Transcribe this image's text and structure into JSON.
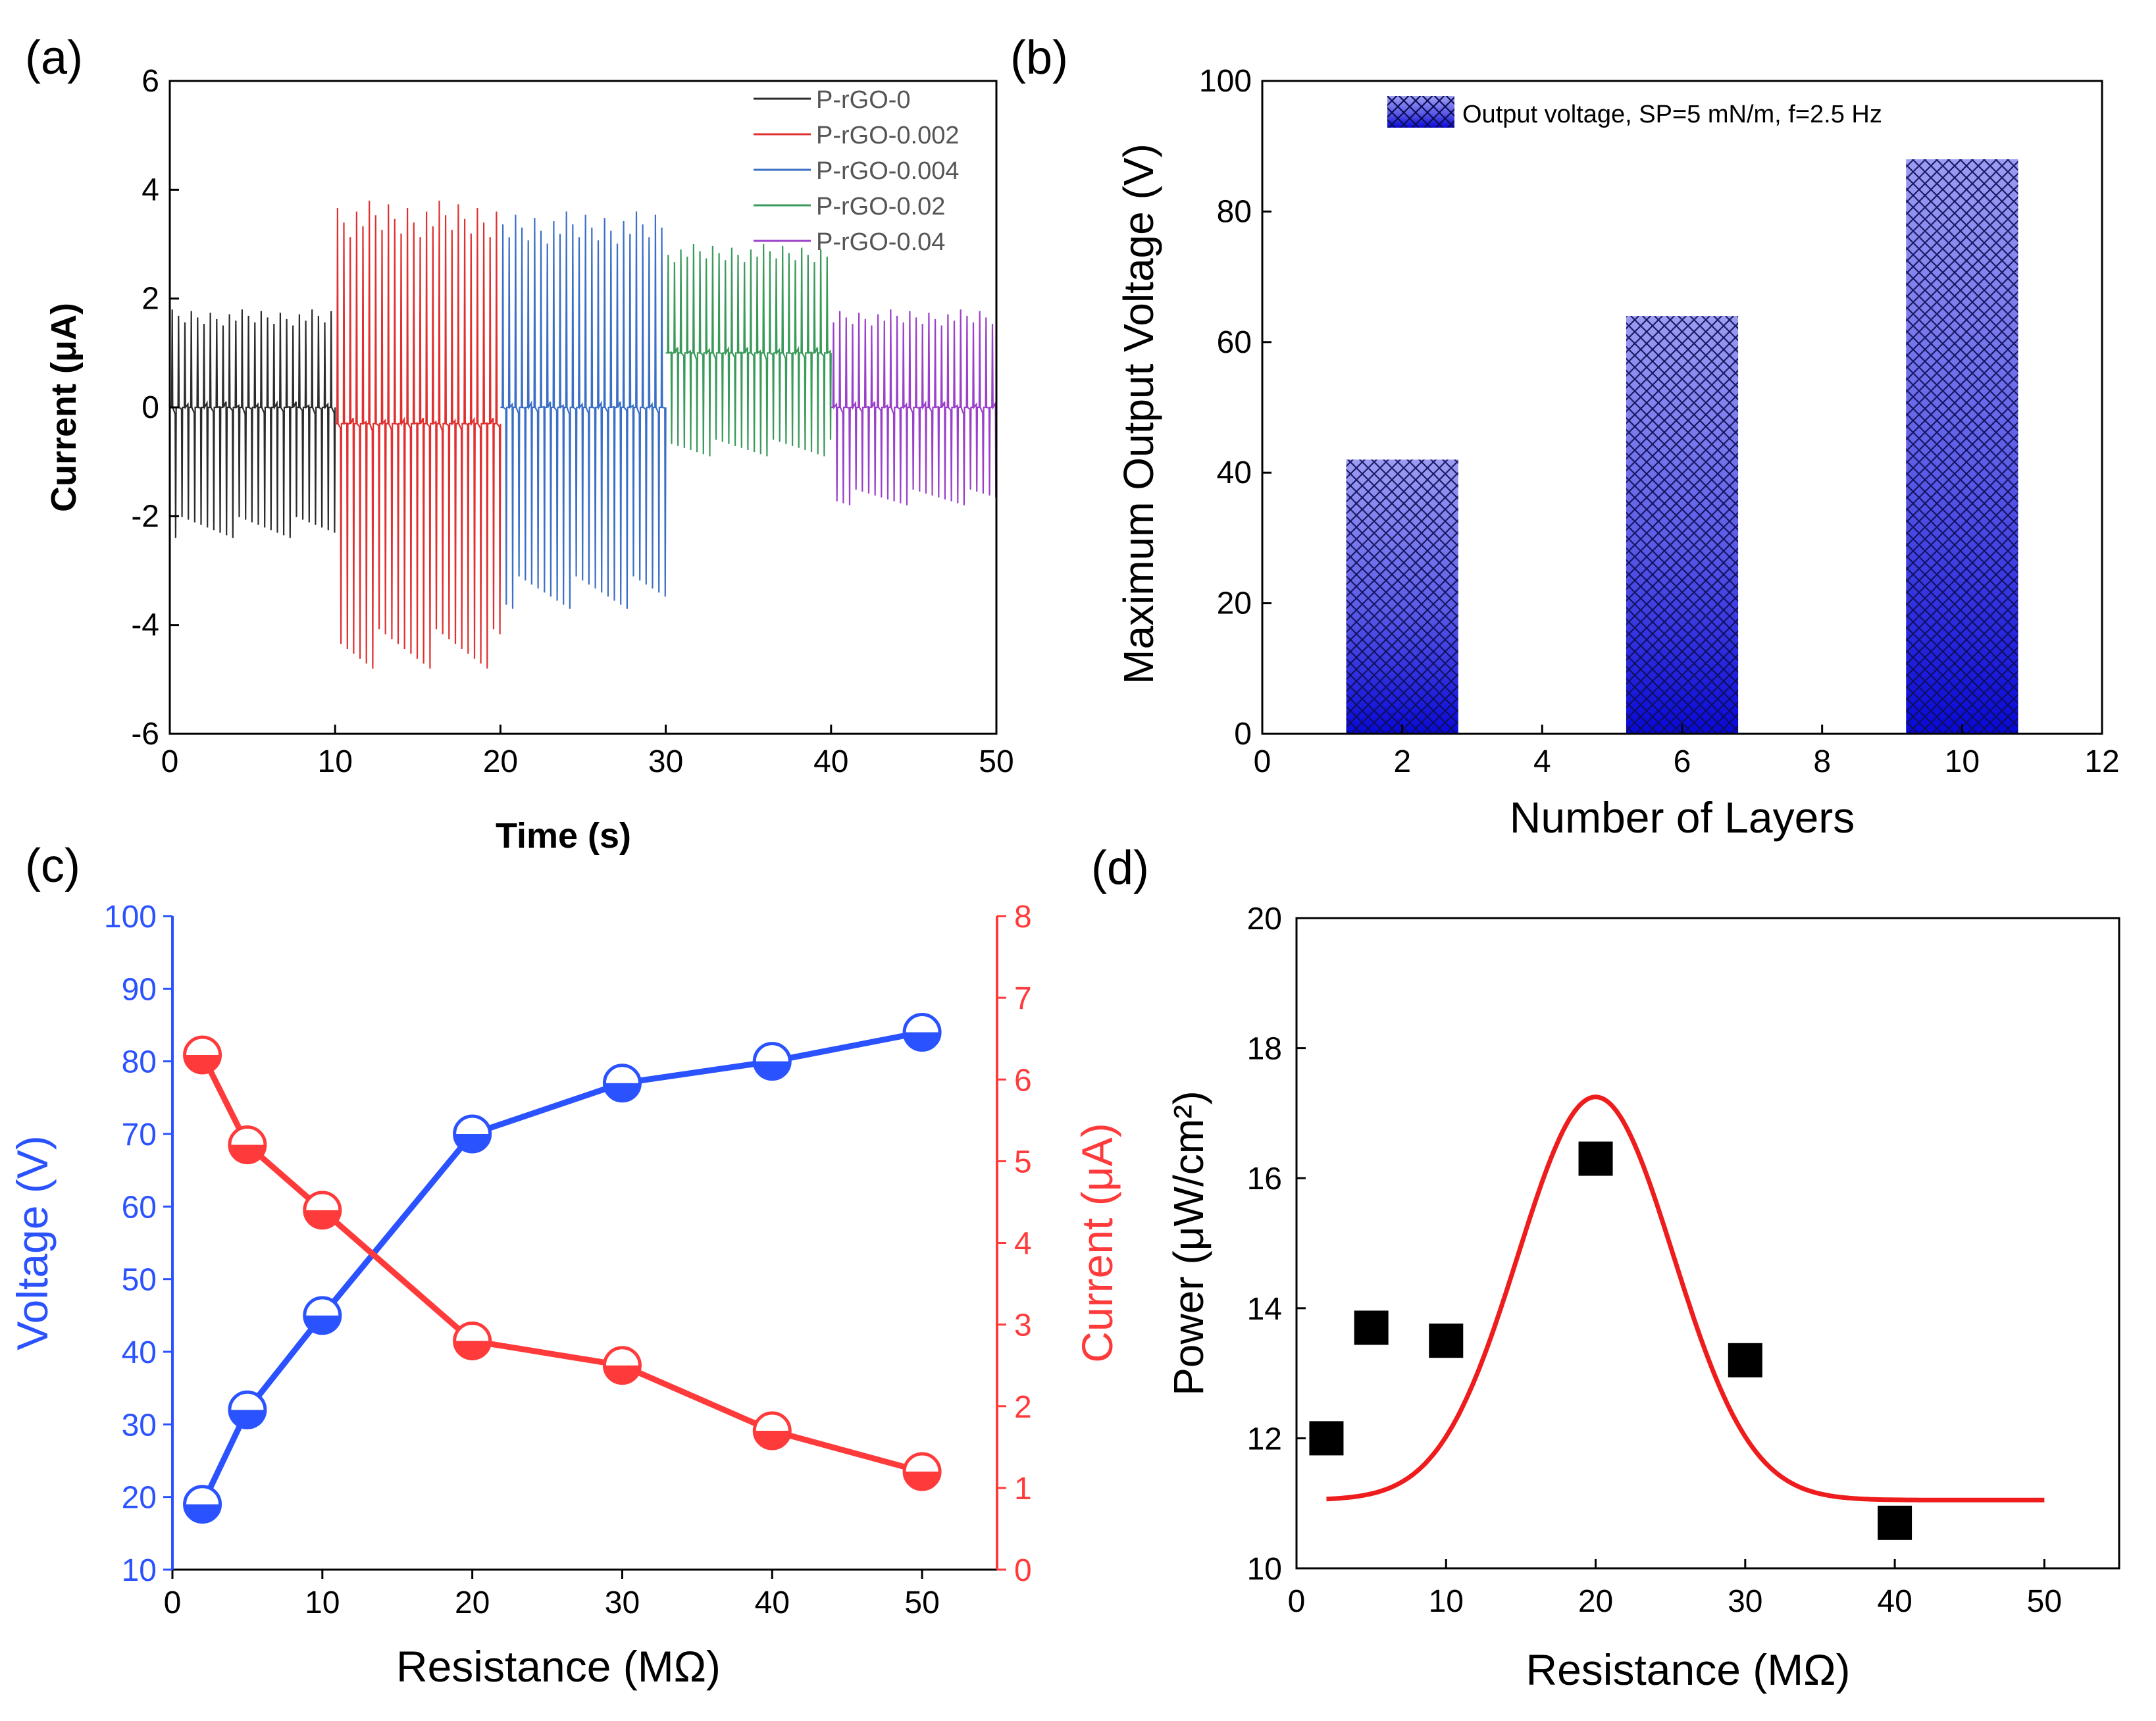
{
  "chart_data": [
    {
      "panel": "(a)",
      "type": "line",
      "xlabel": "Time (s)",
      "ylabel": "Current (μA)",
      "xlim": [
        0,
        50
      ],
      "ylim": [
        -6,
        6
      ],
      "xticks": [
        "0",
        "10",
        "20",
        "30",
        "40",
        "50"
      ],
      "yticks": [
        "-6",
        "-4",
        "-2",
        "0",
        "2",
        "4",
        "6"
      ],
      "legend_position": "top-right",
      "series": [
        {
          "name": "P-rGO-0",
          "color": "#2b2b2b",
          "x_range": [
            0,
            10
          ],
          "baseline": 0.0,
          "max": 1.8,
          "min": -2.4,
          "n_pulses": 26
        },
        {
          "name": "P-rGO-0.002",
          "color": "#e03030",
          "x_range": [
            10,
            20
          ],
          "baseline": -0.3,
          "max": 3.8,
          "min": -4.8,
          "n_pulses": 26
        },
        {
          "name": "P-rGO-0.004",
          "color": "#3b6fc6",
          "x_range": [
            20,
            30
          ],
          "baseline": 0.0,
          "max": 3.6,
          "min": -3.7,
          "n_pulses": 26
        },
        {
          "name": "P-rGO-0.02",
          "color": "#3a9a5a",
          "x_range": [
            30,
            40
          ],
          "baseline": 1.0,
          "max": 3.0,
          "min": -0.9,
          "n_pulses": 26
        },
        {
          "name": "P-rGO-0.04",
          "color": "#9b40c9",
          "x_range": [
            40,
            50
          ],
          "baseline": 0.0,
          "max": 1.8,
          "min": -1.8,
          "n_pulses": 26
        }
      ]
    },
    {
      "panel": "(b)",
      "type": "bar",
      "xlabel": "Number of Layers",
      "ylabel": "Maximum Output Voltage (V)",
      "xlim": [
        0,
        12
      ],
      "ylim": [
        0,
        100
      ],
      "xticks": [
        "0",
        "2",
        "4",
        "6",
        "8",
        "10",
        "12"
      ],
      "yticks": [
        "0",
        "20",
        "40",
        "60",
        "80",
        "100"
      ],
      "legend": "Output voltage, SP=5 mN/m, f=2.5 Hz",
      "legend_position": "top",
      "bar_width": 1.6,
      "x": [
        2,
        6,
        10
      ],
      "values": [
        42,
        64,
        88
      ],
      "color": "#2020d0"
    },
    {
      "panel": "(c)",
      "type": "line",
      "xlabel": "Resistance (MΩ)",
      "xlim": [
        0,
        55
      ],
      "xticks": [
        "0",
        "10",
        "20",
        "30",
        "40",
        "50"
      ],
      "left_axis": {
        "label": "Voltage (V)",
        "ylim": [
          10,
          100
        ],
        "color": "#2a52ff",
        "ticks": [
          "10",
          "20",
          "30",
          "40",
          "50",
          "60",
          "70",
          "80",
          "90",
          "100"
        ]
      },
      "right_axis": {
        "label": "Current (μA)",
        "ylim": [
          0,
          8
        ],
        "color": "#ff3a3a",
        "ticks": [
          "0",
          "1",
          "2",
          "3",
          "4",
          "5",
          "6",
          "7",
          "8"
        ]
      },
      "series": [
        {
          "name": "Voltage",
          "axis": "left",
          "color": "#2a52ff",
          "x": [
            2,
            5,
            10,
            20,
            30,
            40,
            50
          ],
          "y": [
            19,
            32,
            45,
            70,
            77,
            80,
            84
          ]
        },
        {
          "name": "Current",
          "axis": "right",
          "color": "#ff3a3a",
          "x": [
            2,
            5,
            10,
            20,
            30,
            40,
            50
          ],
          "y": [
            6.3,
            5.2,
            4.4,
            2.8,
            2.5,
            1.7,
            1.2
          ]
        }
      ]
    },
    {
      "panel": "(d)",
      "type": "scatter",
      "xlabel": "Resistance (MΩ)",
      "ylabel": "Power (μW/cm²)",
      "xlim": [
        0,
        55
      ],
      "ylim": [
        10,
        20
      ],
      "xticks": [
        "0",
        "10",
        "20",
        "30",
        "40",
        "50"
      ],
      "yticks": [
        "10",
        "12",
        "14",
        "16",
        "18",
        "20"
      ],
      "series": [
        {
          "name": "Power",
          "color": "#000000",
          "x": [
            2,
            5,
            10,
            20,
            30,
            40
          ],
          "y": [
            12.0,
            13.7,
            13.5,
            16.3,
            13.2,
            10.7
          ]
        }
      ],
      "fit": {
        "type": "gaussian",
        "color": "#ee1c1c",
        "x_range": [
          2,
          50
        ],
        "baseline": 11.05,
        "amplitude": 6.2,
        "center": 20,
        "sigma": 5.2
      }
    }
  ]
}
